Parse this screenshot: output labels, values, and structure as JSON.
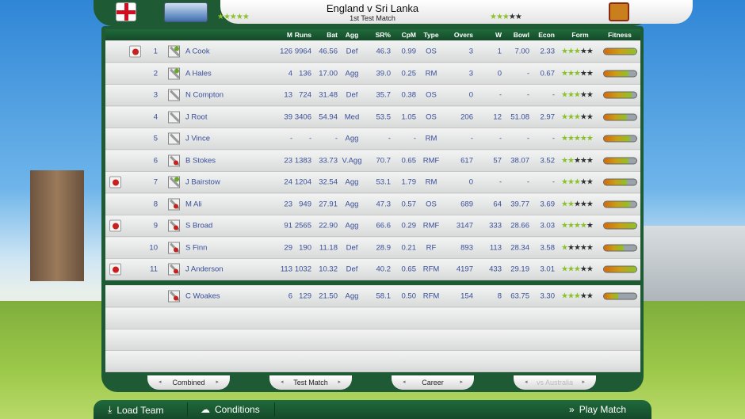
{
  "header": {
    "title": "England v Sri Lanka",
    "subtitle": "1st Test Match",
    "home_rating": 5,
    "away_rating": 3
  },
  "columns": [
    "M",
    "Runs",
    "Bat",
    "Agg",
    "SR%",
    "CpM",
    "Type",
    "Overs",
    "W",
    "Bowl",
    "Econ",
    "Form",
    "Fitness"
  ],
  "players": [
    {
      "no": "1",
      "name": "A Cook",
      "role": "keeper",
      "ball": true,
      "M": "126",
      "Runs": "9964",
      "Bat": "46.56",
      "Agg": "Def",
      "SR": "46.3",
      "CpM": "0.99",
      "Type": "OS",
      "Overs": "3",
      "W": "1",
      "Bowl": "7.00",
      "Econ": "2.33",
      "form": 3,
      "fitness": 100
    },
    {
      "no": "2",
      "name": "A Hales",
      "role": "keeper",
      "ball": false,
      "M": "4",
      "Runs": "136",
      "Bat": "17.00",
      "Agg": "Agg",
      "SR": "39.0",
      "CpM": "0.25",
      "Type": "RM",
      "Overs": "3",
      "W": "0",
      "Bowl": "-",
      "Econ": "0.67",
      "form": 3,
      "fitness": 75
    },
    {
      "no": "3",
      "name": "N Compton",
      "role": "bat",
      "ball": false,
      "M": "13",
      "Runs": "724",
      "Bat": "31.48",
      "Agg": "Def",
      "SR": "35.7",
      "CpM": "0.38",
      "Type": "OS",
      "Overs": "0",
      "W": "-",
      "Bowl": "-",
      "Econ": "-",
      "form": 3,
      "fitness": 85
    },
    {
      "no": "4",
      "name": "J Root",
      "role": "bat",
      "ball": false,
      "M": "39",
      "Runs": "3406",
      "Bat": "54.94",
      "Agg": "Med",
      "SR": "53.5",
      "CpM": "1.05",
      "Type": "OS",
      "Overs": "206",
      "W": "12",
      "Bowl": "51.08",
      "Econ": "2.97",
      "form": 3,
      "fitness": 70
    },
    {
      "no": "5",
      "name": "J Vince",
      "role": "bat",
      "ball": false,
      "M": "-",
      "Runs": "-",
      "Bat": "-",
      "Agg": "Agg",
      "SR": "-",
      "CpM": "-",
      "Type": "RM",
      "Overs": "-",
      "W": "-",
      "Bowl": "-",
      "Econ": "-",
      "form": 5,
      "fitness": 80
    },
    {
      "no": "6",
      "name": "B Stokes",
      "role": "bowl",
      "ball": false,
      "M": "23",
      "Runs": "1383",
      "Bat": "33.73",
      "Agg": "V.Agg",
      "SR": "70.7",
      "CpM": "0.65",
      "Type": "RMF",
      "Overs": "617",
      "W": "57",
      "Bowl": "38.07",
      "Econ": "3.52",
      "form": 2,
      "fitness": 75
    },
    {
      "no": "7",
      "name": "J Bairstow",
      "role": "keeper",
      "ball": true,
      "M": "24",
      "Runs": "1204",
      "Bat": "32.54",
      "Agg": "Agg",
      "SR": "53.1",
      "CpM": "1.79",
      "Type": "RM",
      "Overs": "0",
      "W": "-",
      "Bowl": "-",
      "Econ": "-",
      "form": 3,
      "fitness": 70
    },
    {
      "no": "8",
      "name": "M Ali",
      "role": "bowl",
      "ball": false,
      "M": "23",
      "Runs": "949",
      "Bat": "27.91",
      "Agg": "Agg",
      "SR": "47.3",
      "CpM": "0.57",
      "Type": "OS",
      "Overs": "689",
      "W": "64",
      "Bowl": "39.77",
      "Econ": "3.69",
      "form": 2,
      "fitness": 80
    },
    {
      "no": "9",
      "name": "S Broad",
      "role": "ball",
      "ball": true,
      "M": "91",
      "Runs": "2565",
      "Bat": "22.90",
      "Agg": "Agg",
      "SR": "66.6",
      "CpM": "0.29",
      "Type": "RMF",
      "Overs": "3147",
      "W": "333",
      "Bowl": "28.66",
      "Econ": "3.03",
      "form": 4,
      "fitness": 100
    },
    {
      "no": "10",
      "name": "S Finn",
      "role": "ball",
      "ball": false,
      "M": "29",
      "Runs": "190",
      "Bat": "11.18",
      "Agg": "Def",
      "SR": "28.9",
      "CpM": "0.21",
      "Type": "RF",
      "Overs": "893",
      "W": "113",
      "Bowl": "28.34",
      "Econ": "3.58",
      "form": 1,
      "fitness": 60
    },
    {
      "no": "11",
      "name": "J Anderson",
      "role": "ball",
      "ball": true,
      "M": "113",
      "Runs": "1032",
      "Bat": "10.32",
      "Agg": "Def",
      "SR": "40.2",
      "CpM": "0.65",
      "Type": "RFM",
      "Overs": "4197",
      "W": "433",
      "Bowl": "29.19",
      "Econ": "3.01",
      "form": 3,
      "fitness": 100
    }
  ],
  "reserves": [
    {
      "no": "",
      "name": "C Woakes",
      "role": "bowl",
      "ball": false,
      "M": "6",
      "Runs": "129",
      "Bat": "21.50",
      "Agg": "Agg",
      "SR": "58.1",
      "CpM": "0.50",
      "Type": "RFM",
      "Overs": "154",
      "W": "8",
      "Bowl": "63.75",
      "Econ": "3.30",
      "form": 3,
      "fitness": 45
    }
  ],
  "tabs": [
    {
      "label": "Combined",
      "enabled": true
    },
    {
      "label": "Test Match",
      "enabled": true
    },
    {
      "label": "Career",
      "enabled": true
    },
    {
      "label": "vs Australia",
      "enabled": false
    }
  ],
  "bottom": {
    "load_team": "Load Team",
    "conditions": "Conditions",
    "play_match": "Play Match"
  },
  "colors": {
    "accent_green": "#1e5a34",
    "text_blue": "#3a4f9a",
    "star_green": "#8cc22c"
  }
}
